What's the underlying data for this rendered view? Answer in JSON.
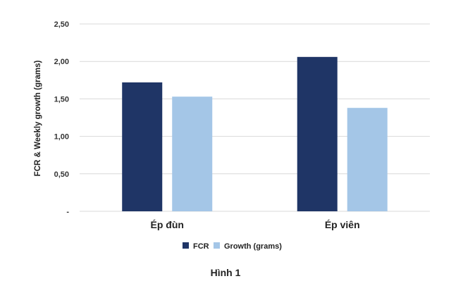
{
  "chart_data": {
    "type": "bar",
    "categories": [
      "Ép đùn",
      "Ép viên"
    ],
    "series": [
      {
        "name": "FCR",
        "values": [
          1.72,
          2.06
        ],
        "color": "#1f3566"
      },
      {
        "name": "Growth (grams)",
        "values": [
          1.53,
          1.38
        ],
        "color": "#a4c6e7"
      }
    ],
    "ylabel": "FCR & Weekly growth (grams)",
    "xlabel": "",
    "ylim": [
      0,
      2.5
    ],
    "yticks": [
      0,
      0.5,
      1.0,
      1.5,
      2.0,
      2.5
    ],
    "ytick_labels": [
      "-",
      "0,50",
      "1,00",
      "1,50",
      "2,00",
      "2,50"
    ],
    "grid": true,
    "legend_position": "bottom"
  },
  "caption": "Hình 1",
  "colors": {
    "grid": "#d9d9d9",
    "background": "#ffffff"
  }
}
